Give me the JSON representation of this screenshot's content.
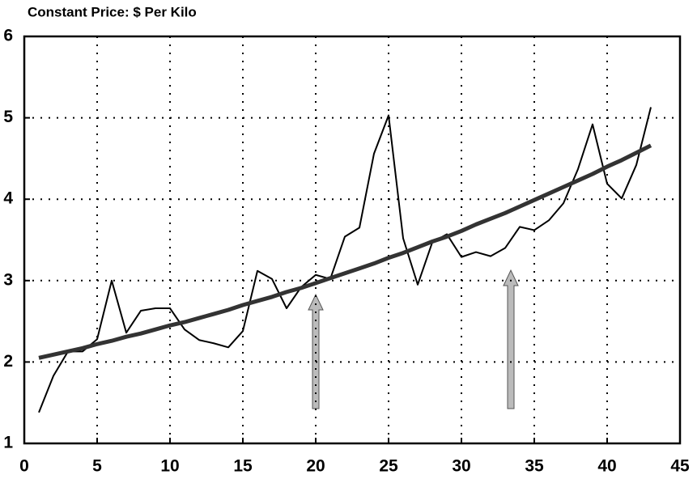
{
  "chart_data": {
    "type": "line",
    "title": "Constant Price: $ Per Kilo",
    "x": [
      1,
      2,
      3,
      4,
      5,
      6,
      7,
      8,
      9,
      10,
      11,
      12,
      13,
      14,
      15,
      16,
      17,
      18,
      19,
      20,
      21,
      22,
      23,
      24,
      25,
      26,
      27,
      28,
      29,
      30,
      31,
      32,
      33,
      34,
      35,
      36,
      37,
      38,
      39,
      40,
      41,
      42,
      43
    ],
    "series": [
      {
        "color": "#000000",
        "values": [
          1.38,
          1.83,
          2.13,
          2.13,
          2.28,
          3.0,
          2.36,
          2.63,
          2.66,
          2.66,
          2.4,
          2.27,
          2.23,
          2.18,
          2.38,
          3.12,
          3.02,
          2.66,
          2.92,
          3.07,
          3.02,
          3.54,
          3.65,
          4.56,
          5.03,
          3.52,
          2.95,
          3.47,
          3.57,
          3.29,
          3.35,
          3.3,
          3.4,
          3.66,
          3.62,
          3.74,
          3.95,
          4.37,
          4.92,
          4.19,
          4.01,
          4.42,
          5.13
        ]
      },
      {
        "color": "#333333",
        "values": [
          2.05,
          2.09,
          2.13,
          2.17,
          2.22,
          2.26,
          2.31,
          2.35,
          2.4,
          2.45,
          2.49,
          2.54,
          2.59,
          2.64,
          2.7,
          2.75,
          2.8,
          2.86,
          2.91,
          2.97,
          3.03,
          3.09,
          3.15,
          3.21,
          3.28,
          3.34,
          3.41,
          3.48,
          3.54,
          3.61,
          3.69,
          3.76,
          3.83,
          3.91,
          3.99,
          4.07,
          4.15,
          4.23,
          4.31,
          4.4,
          4.48,
          4.57,
          4.66
        ]
      }
    ],
    "xlim": [
      0,
      45
    ],
    "xticks": [
      0,
      5,
      10,
      15,
      20,
      25,
      30,
      35,
      40,
      45
    ],
    "ylim": [
      1,
      6
    ],
    "yticks": [
      1,
      2,
      3,
      4,
      5,
      6
    ],
    "grid": true
  }
}
